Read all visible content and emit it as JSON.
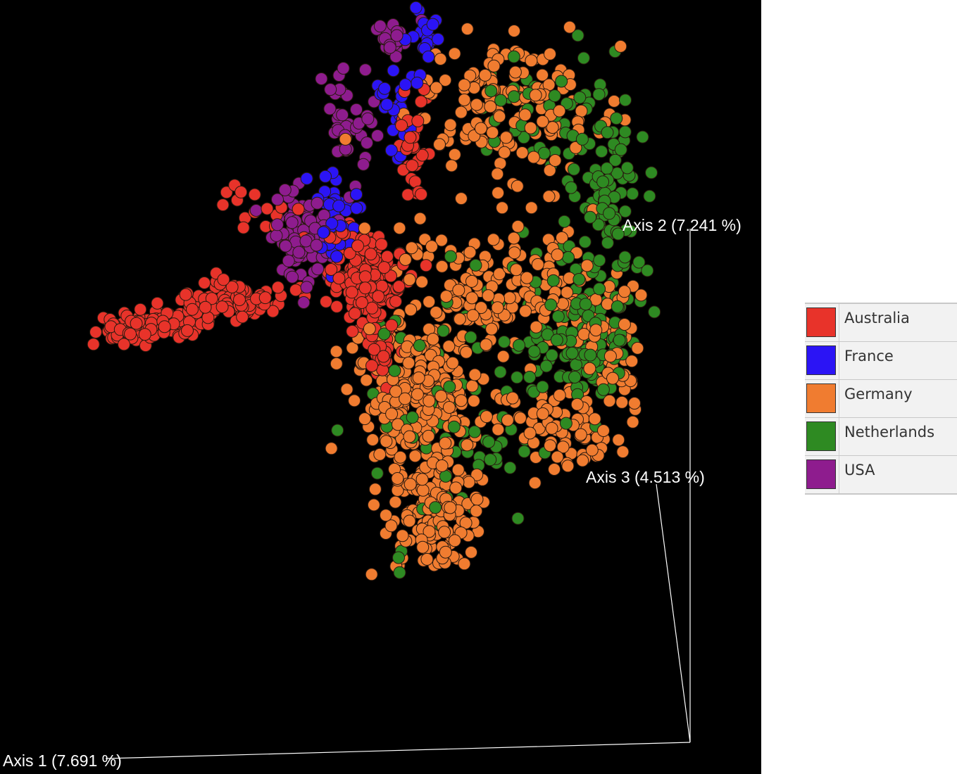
{
  "chart_data": {
    "type": "scatter",
    "title": "",
    "axes": [
      {
        "name": "Axis 1",
        "label": "Axis 1 (7.691 %)"
      },
      {
        "name": "Axis 2",
        "label": "Axis 2 (7.241 %)"
      },
      {
        "name": "Axis 3",
        "label": "Axis 3 (4.513 %)"
      }
    ],
    "background": "#000000",
    "legend_placement": "right",
    "series": [
      {
        "name": "Australia",
        "color": "#e8332a"
      },
      {
        "name": "France",
        "color": "#2b14f5"
      },
      {
        "name": "Germany",
        "color": "#f07c30"
      },
      {
        "name": "Netherlands",
        "color": "#2e8a22"
      },
      {
        "name": "USA",
        "color": "#8e1c8e"
      }
    ]
  }
}
